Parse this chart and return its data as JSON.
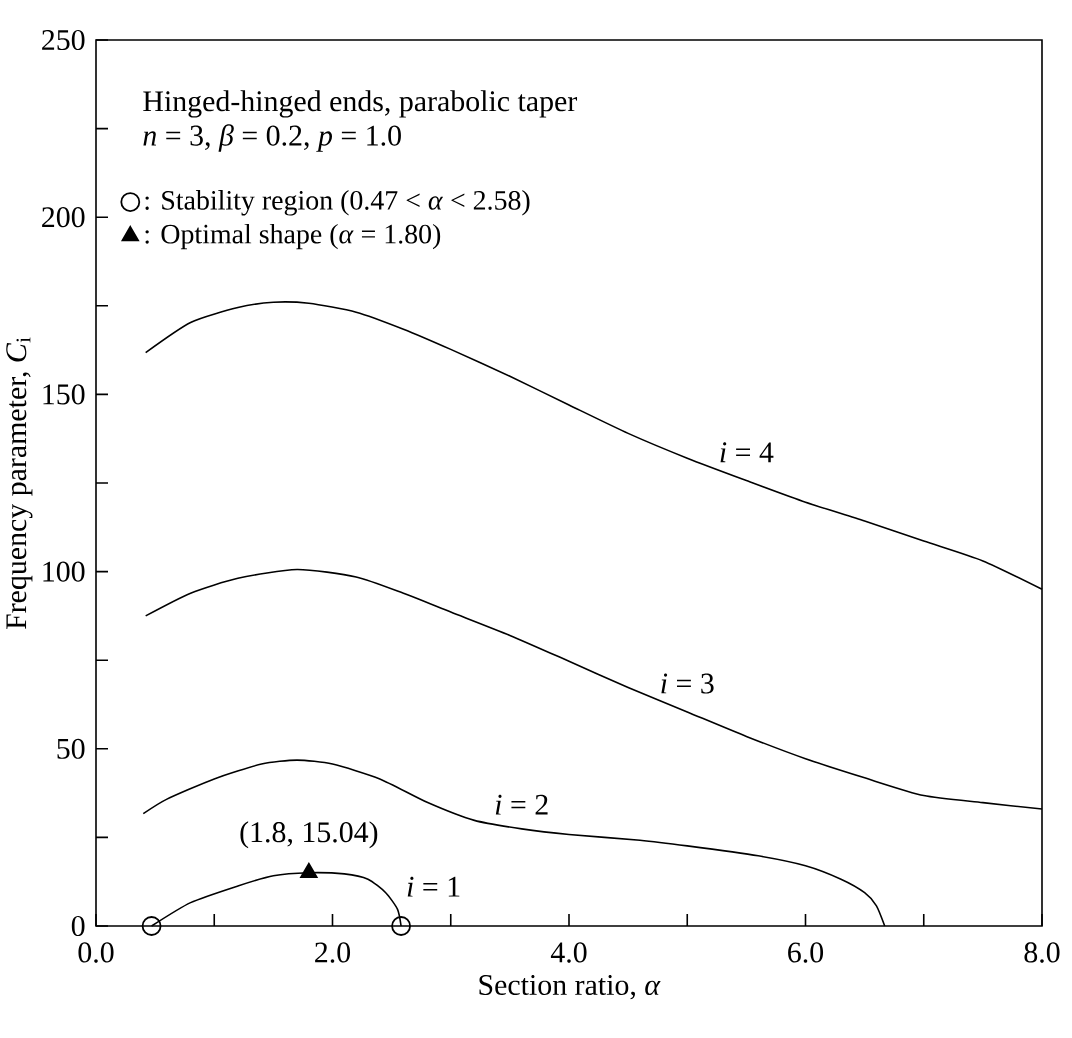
{
  "chart_data": {
    "type": "line",
    "xlabel": "Section ratio, *α*",
    "ylabel": "Frequency parameter, *C*$_{i}$",
    "xlim": [
      0,
      8
    ],
    "ylim": [
      0,
      250
    ],
    "xticks": [
      {
        "value": 0,
        "label": "0.0"
      },
      {
        "value": 1,
        "label": null
      },
      {
        "value": 2,
        "label": "2.0"
      },
      {
        "value": 3,
        "label": null
      },
      {
        "value": 4,
        "label": "4.0"
      },
      {
        "value": 5,
        "label": null
      },
      {
        "value": 6,
        "label": "6.0"
      },
      {
        "value": 7,
        "label": null
      },
      {
        "value": 8,
        "label": "8.0"
      }
    ],
    "yticks": [
      0,
      {
        "value": 25,
        "label": null
      },
      50,
      {
        "value": 75,
        "label": null
      },
      100,
      {
        "value": 125,
        "label": null
      },
      150,
      {
        "value": 175,
        "label": null
      },
      200,
      {
        "value": 225,
        "label": null
      },
      250
    ],
    "annotations": [
      "Hinged-hinged ends, parabolic taper",
      "*n* = 3, *β* = 0.2, *p* = 1.0",
      {
        "text": "(1.8, 15.04)",
        "x": 1.8,
        "y": 15.04
      }
    ],
    "legend": "top left",
    "series": [
      {
        "name": "*i* = 1",
        "color": "#000000",
        "x": [
          0.47,
          0.8,
          1.2,
          1.5,
          1.8,
          2.1,
          2.3,
          2.45,
          2.55,
          2.58
        ],
        "values": [
          0,
          6.6,
          11.3,
          14.2,
          15.04,
          14.7,
          13.2,
          9.4,
          4.7,
          0
        ]
      },
      {
        "name": "*i* = 2",
        "color": "#000000",
        "x": [
          0.4,
          0.6,
          1.0,
          1.4,
          1.7,
          2.0,
          2.4,
          2.8,
          3.2,
          3.6,
          4.0,
          4.6,
          5.0,
          5.6,
          6.0,
          6.3,
          6.5,
          6.6,
          6.67
        ],
        "values": [
          31.7,
          35.8,
          41.5,
          45.7,
          46.8,
          45.7,
          41.5,
          34.9,
          29.8,
          27.4,
          25.8,
          24.2,
          22.6,
          19.8,
          17,
          13.2,
          9.4,
          5.7,
          0
        ]
      },
      {
        "name": "*i* = 3",
        "color": "#000000",
        "x": [
          0.42,
          0.8,
          1.2,
          1.7,
          2.2,
          2.6,
          3.0,
          3.5,
          4.0,
          4.5,
          5.0,
          5.5,
          6.0,
          6.5,
          7.0,
          7.5,
          8.0
        ],
        "values": [
          87.5,
          93.9,
          98.1,
          100.6,
          98.5,
          93.9,
          88.6,
          82,
          74.7,
          67.3,
          60.4,
          53.5,
          47.2,
          41.8,
          36.8,
          34.8,
          33
        ]
      },
      {
        "name": "*i* = 4",
        "color": "#000000",
        "x": [
          0.42,
          0.8,
          1.2,
          1.5,
          1.8,
          2.2,
          2.6,
          3.0,
          3.5,
          4.0,
          4.5,
          5.0,
          5.5,
          6.0,
          6.5,
          7.0,
          7.5,
          8.0
        ],
        "values": [
          161.8,
          170.3,
          174.5,
          176,
          175.7,
          173.2,
          168.4,
          162.7,
          155.1,
          147,
          139,
          132,
          125.7,
          119.6,
          114.3,
          108.6,
          103,
          95
        ]
      },
      {
        "type": "scatter",
        "marker": "circle",
        "name": ": Stability region (0.47 < *α* < 2.58)",
        "color": "#000000",
        "x": [
          0.47,
          2.58
        ],
        "values": [
          0,
          0
        ]
      },
      {
        "type": "scatter",
        "marker": "triangle",
        "name": ": Optimal shape (*α* = 1.80)",
        "color": "#000000",
        "x": [
          1.8
        ],
        "values": [
          15.04
        ]
      }
    ]
  }
}
